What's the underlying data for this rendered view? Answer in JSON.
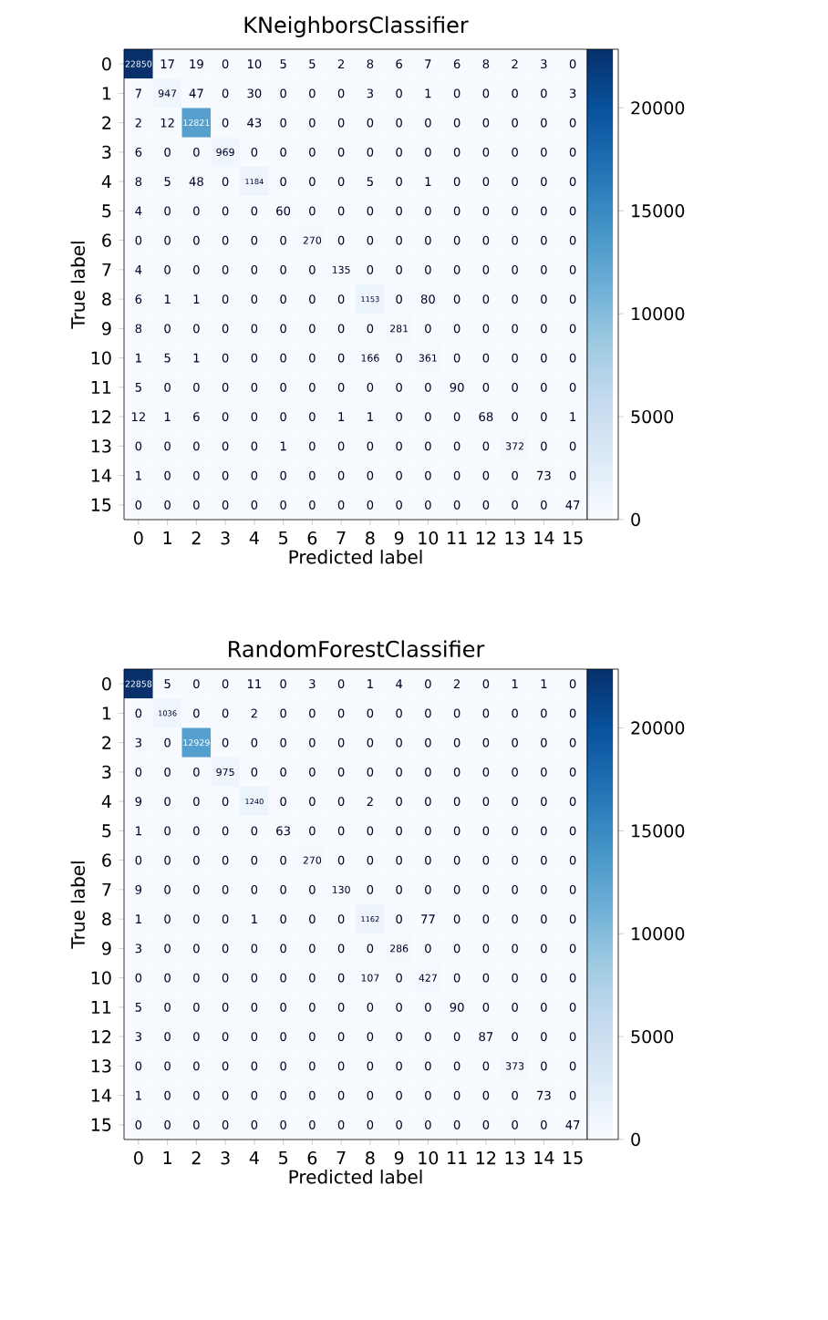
{
  "chart_data": [
    {
      "type": "heatmap",
      "title": "KNeighborsClassifier",
      "xlabel": "Predicted label",
      "ylabel": "True label",
      "categories": [
        "0",
        "1",
        "2",
        "3",
        "4",
        "5",
        "6",
        "7",
        "8",
        "9",
        "10",
        "11",
        "12",
        "13",
        "14",
        "15"
      ],
      "y_categories": [
        "0",
        "1",
        "2",
        "3",
        "4",
        "5",
        "6",
        "7",
        "8",
        "9",
        "10",
        "11",
        "12",
        "13",
        "14",
        "15"
      ],
      "cells": [
        [
          22850,
          17,
          19,
          0,
          10,
          5,
          5,
          2,
          8,
          6,
          7,
          6,
          8,
          2,
          3,
          0
        ],
        [
          7,
          947,
          47,
          0,
          30,
          0,
          0,
          0,
          3,
          0,
          1,
          0,
          0,
          0,
          0,
          3
        ],
        [
          2,
          12,
          12821,
          0,
          43,
          0,
          0,
          0,
          0,
          0,
          0,
          0,
          0,
          0,
          0,
          0
        ],
        [
          6,
          0,
          0,
          969,
          0,
          0,
          0,
          0,
          0,
          0,
          0,
          0,
          0,
          0,
          0,
          0
        ],
        [
          8,
          5,
          48,
          0,
          1184,
          0,
          0,
          0,
          5,
          0,
          1,
          0,
          0,
          0,
          0,
          0
        ],
        [
          4,
          0,
          0,
          0,
          0,
          60,
          0,
          0,
          0,
          0,
          0,
          0,
          0,
          0,
          0,
          0
        ],
        [
          0,
          0,
          0,
          0,
          0,
          0,
          270,
          0,
          0,
          0,
          0,
          0,
          0,
          0,
          0,
          0
        ],
        [
          4,
          0,
          0,
          0,
          0,
          0,
          0,
          135,
          0,
          0,
          0,
          0,
          0,
          0,
          0,
          0
        ],
        [
          6,
          1,
          1,
          0,
          0,
          0,
          0,
          0,
          1153,
          0,
          80,
          0,
          0,
          0,
          0,
          0
        ],
        [
          8,
          0,
          0,
          0,
          0,
          0,
          0,
          0,
          0,
          281,
          0,
          0,
          0,
          0,
          0,
          0
        ],
        [
          1,
          5,
          1,
          0,
          0,
          0,
          0,
          0,
          166,
          0,
          361,
          0,
          0,
          0,
          0,
          0
        ],
        [
          5,
          0,
          0,
          0,
          0,
          0,
          0,
          0,
          0,
          0,
          0,
          90,
          0,
          0,
          0,
          0
        ],
        [
          12,
          1,
          6,
          0,
          0,
          0,
          0,
          1,
          1,
          0,
          0,
          0,
          68,
          0,
          0,
          1
        ],
        [
          0,
          0,
          0,
          0,
          0,
          1,
          0,
          0,
          0,
          0,
          0,
          0,
          0,
          372,
          0,
          0
        ],
        [
          1,
          0,
          0,
          0,
          0,
          0,
          0,
          0,
          0,
          0,
          0,
          0,
          0,
          0,
          73,
          0
        ],
        [
          0,
          0,
          0,
          0,
          0,
          0,
          0,
          0,
          0,
          0,
          0,
          0,
          0,
          0,
          0,
          47
        ]
      ],
      "clim": [
        0,
        22850
      ],
      "cticks": [
        0,
        5000,
        10000,
        15000,
        20000
      ],
      "data_labels": true
    },
    {
      "type": "heatmap",
      "title": "RandomForestClassifier",
      "xlabel": "Predicted label",
      "ylabel": "True label",
      "categories": [
        "0",
        "1",
        "2",
        "3",
        "4",
        "5",
        "6",
        "7",
        "8",
        "9",
        "10",
        "11",
        "12",
        "13",
        "14",
        "15"
      ],
      "y_categories": [
        "0",
        "1",
        "2",
        "3",
        "4",
        "5",
        "6",
        "7",
        "8",
        "9",
        "10",
        "11",
        "12",
        "13",
        "14",
        "15"
      ],
      "cells": [
        [
          22858,
          5,
          0,
          0,
          11,
          0,
          3,
          0,
          1,
          4,
          0,
          2,
          0,
          1,
          1,
          0
        ],
        [
          0,
          1036,
          0,
          0,
          2,
          0,
          0,
          0,
          0,
          0,
          0,
          0,
          0,
          0,
          0,
          0
        ],
        [
          3,
          0,
          12929,
          0,
          0,
          0,
          0,
          0,
          0,
          0,
          0,
          0,
          0,
          0,
          0,
          0
        ],
        [
          0,
          0,
          0,
          975,
          0,
          0,
          0,
          0,
          0,
          0,
          0,
          0,
          0,
          0,
          0,
          0
        ],
        [
          9,
          0,
          0,
          0,
          1240,
          0,
          0,
          0,
          2,
          0,
          0,
          0,
          0,
          0,
          0,
          0
        ],
        [
          1,
          0,
          0,
          0,
          0,
          63,
          0,
          0,
          0,
          0,
          0,
          0,
          0,
          0,
          0,
          0
        ],
        [
          0,
          0,
          0,
          0,
          0,
          0,
          270,
          0,
          0,
          0,
          0,
          0,
          0,
          0,
          0,
          0
        ],
        [
          9,
          0,
          0,
          0,
          0,
          0,
          0,
          130,
          0,
          0,
          0,
          0,
          0,
          0,
          0,
          0
        ],
        [
          1,
          0,
          0,
          0,
          1,
          0,
          0,
          0,
          1162,
          0,
          77,
          0,
          0,
          0,
          0,
          0
        ],
        [
          3,
          0,
          0,
          0,
          0,
          0,
          0,
          0,
          0,
          286,
          0,
          0,
          0,
          0,
          0,
          0
        ],
        [
          0,
          0,
          0,
          0,
          0,
          0,
          0,
          0,
          107,
          0,
          427,
          0,
          0,
          0,
          0,
          0
        ],
        [
          5,
          0,
          0,
          0,
          0,
          0,
          0,
          0,
          0,
          0,
          0,
          90,
          0,
          0,
          0,
          0
        ],
        [
          3,
          0,
          0,
          0,
          0,
          0,
          0,
          0,
          0,
          0,
          0,
          0,
          87,
          0,
          0,
          0
        ],
        [
          0,
          0,
          0,
          0,
          0,
          0,
          0,
          0,
          0,
          0,
          0,
          0,
          0,
          373,
          0,
          0
        ],
        [
          1,
          0,
          0,
          0,
          0,
          0,
          0,
          0,
          0,
          0,
          0,
          0,
          0,
          0,
          73,
          0
        ],
        [
          0,
          0,
          0,
          0,
          0,
          0,
          0,
          0,
          0,
          0,
          0,
          0,
          0,
          0,
          0,
          47
        ]
      ],
      "clim": [
        0,
        22858
      ],
      "cticks": [
        0,
        5000,
        10000,
        15000,
        20000
      ],
      "data_labels": true
    }
  ]
}
